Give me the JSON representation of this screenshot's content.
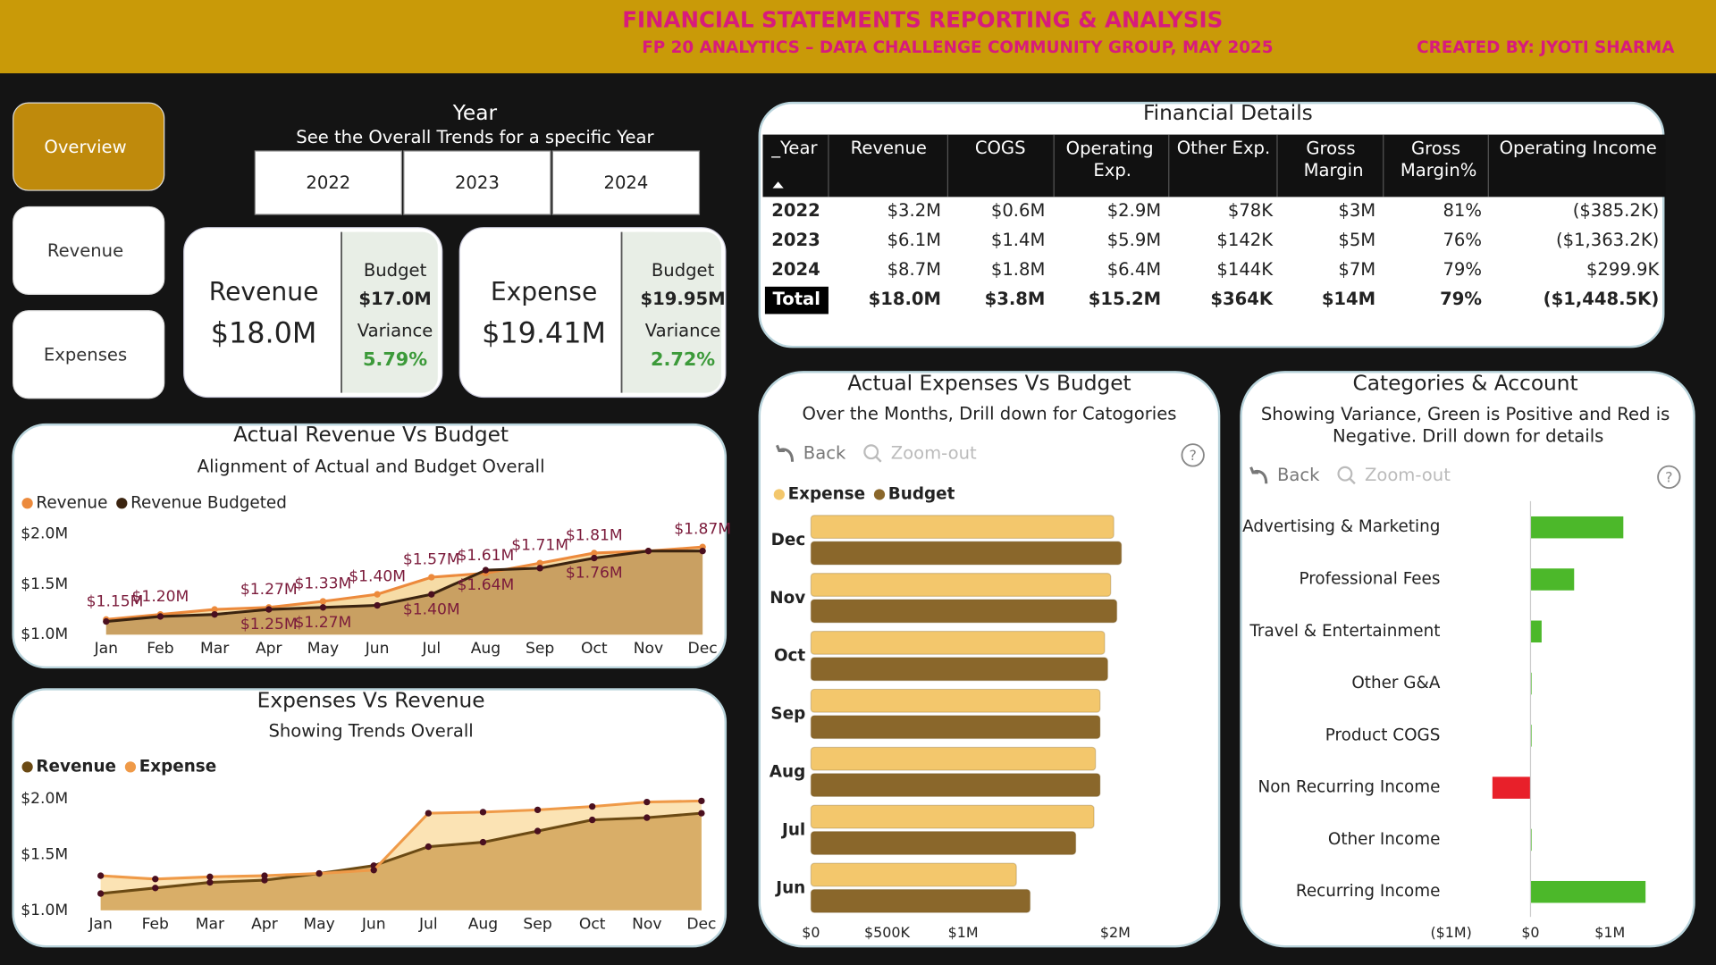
{
  "header": {
    "title": "FINANCIAL STATEMENTS REPORTING & ANALYSIS",
    "subtitle": "FP 20 ANALYTICS – DATA CHALLENGE COMMUNITY GROUP, MAY 2025",
    "credit": "CREATED BY: JYOTI SHARMA"
  },
  "nav": [
    "Overview",
    "Revenue",
    "Expenses"
  ],
  "year_filter": {
    "title": "Year",
    "subtitle": "See the Overall Trends for a specific Year",
    "options": [
      "2022",
      "2023",
      "2024"
    ]
  },
  "kpis": [
    {
      "label": "Revenue",
      "value": "$18.0M",
      "budget_label": "Budget",
      "budget": "$17.0M",
      "variance_label": "Variance",
      "variance": "5.79%"
    },
    {
      "label": "Expense",
      "value": "$19.41M",
      "budget_label": "Budget",
      "budget": "$19.95M",
      "variance_label": "Variance",
      "variance": "2.72%"
    }
  ],
  "table": {
    "title": "Financial Details",
    "columns": [
      "_Year",
      "Revenue",
      "COGS",
      "Operating Exp.",
      "Other Exp.",
      "Gross Margin",
      "Gross Margin%",
      "Operating Income"
    ],
    "rows": [
      [
        "2022",
        "$3.2M",
        "$0.6M",
        "$2.9M",
        "$78K",
        "$3M",
        "81%",
        "($385.2K)"
      ],
      [
        "2023",
        "$6.1M",
        "$1.4M",
        "$5.9M",
        "$142K",
        "$5M",
        "76%",
        "($1,363.2K)"
      ],
      [
        "2024",
        "$8.7M",
        "$1.8M",
        "$6.4M",
        "$144K",
        "$7M",
        "79%",
        "$299.9K"
      ]
    ],
    "total": [
      "Total",
      "$18.0M",
      "$3.8M",
      "$15.2M",
      "$364K",
      "$14M",
      "79%",
      "($1,448.5K)"
    ]
  },
  "chart_data": [
    {
      "type": "area",
      "title": "Actual Revenue Vs Budget",
      "subtitle": "Alignment of Actual and Budget Overall",
      "categories": [
        "Jan",
        "Feb",
        "Mar",
        "Apr",
        "May",
        "Jun",
        "Jul",
        "Aug",
        "Sep",
        "Oct",
        "Nov",
        "Dec"
      ],
      "series": [
        {
          "name": "Revenue",
          "color": "#ec8a3c",
          "fill": "#f6dca6",
          "values": [
            1.15,
            1.2,
            1.25,
            1.27,
            1.33,
            1.4,
            1.57,
            1.61,
            1.71,
            1.81,
            1.83,
            1.87
          ],
          "value_labels": [
            "$1.15M",
            "$1.20M",
            null,
            "$1.27M",
            "$1.33M",
            "$1.40M",
            "$1.57M",
            "$1.61M",
            "$1.71M",
            "$1.81M",
            null,
            "$1.87M"
          ]
        },
        {
          "name": "Revenue Budgeted",
          "color": "#3b2410",
          "fill": "#c9a062",
          "values": [
            1.13,
            1.18,
            1.2,
            1.25,
            1.27,
            1.29,
            1.4,
            1.64,
            1.66,
            1.76,
            1.83,
            1.83
          ],
          "value_labels": [
            null,
            null,
            null,
            "$1.25M",
            "$1.27M",
            null,
            "$1.40M",
            "$1.64M",
            null,
            "$1.76M",
            null,
            null
          ]
        }
      ],
      "ylim": [
        1.0,
        2.0
      ],
      "yticks": [
        {
          "value": 1.0,
          "label": "$1.0M"
        },
        {
          "value": 1.5,
          "label": "$1.5M"
        },
        {
          "value": 2.0,
          "label": "$2.0M"
        }
      ],
      "grid": false
    },
    {
      "type": "area",
      "title": "Expenses Vs Revenue",
      "subtitle": "Showing Trends Overall",
      "categories": [
        "Jan",
        "Feb",
        "Mar",
        "Apr",
        "May",
        "Jun",
        "Jul",
        "Aug",
        "Sep",
        "Oct",
        "Nov",
        "Dec"
      ],
      "series": [
        {
          "name": "Revenue",
          "color": "#6b4a14",
          "fill": "#d9ae68",
          "values": [
            1.15,
            1.2,
            1.25,
            1.27,
            1.33,
            1.4,
            1.57,
            1.61,
            1.71,
            1.81,
            1.83,
            1.87
          ]
        },
        {
          "name": "Expense",
          "color": "#ef9a48",
          "fill": "#fbe3b4",
          "values": [
            1.31,
            1.28,
            1.3,
            1.31,
            1.33,
            1.36,
            1.87,
            1.88,
            1.9,
            1.93,
            1.97,
            1.98
          ]
        }
      ],
      "ylim": [
        1.0,
        2.0
      ],
      "yticks": [
        {
          "value": 1.0,
          "label": "$1.0M"
        },
        {
          "value": 1.5,
          "label": "$1.5M"
        },
        {
          "value": 2.0,
          "label": "$2.0M"
        }
      ],
      "grid": false
    },
    {
      "type": "barh",
      "title": "Actual Expenses Vs Budget",
      "subtitle": "Over the Months, Drill down for Catogories",
      "buttons": [
        "Back",
        "Zoom-out"
      ],
      "help_icon": "?",
      "categories": [
        "Dec",
        "Nov",
        "Oct",
        "Sep",
        "Aug",
        "Jul",
        "Jun"
      ],
      "series": [
        {
          "name": "Expense",
          "color": "#f3c76c",
          "values": [
            1.99,
            1.97,
            1.93,
            1.9,
            1.87,
            1.86,
            1.35
          ]
        },
        {
          "name": "Budget",
          "color": "#8a672b",
          "values": [
            2.04,
            2.01,
            1.95,
            1.9,
            1.9,
            1.74,
            1.44
          ]
        }
      ],
      "xlim": [
        0,
        2.1
      ],
      "xticks": [
        {
          "value": 0,
          "label": "$0"
        },
        {
          "value": 0.5,
          "label": "$500K"
        },
        {
          "value": 1,
          "label": "$1M"
        },
        {
          "value": 2,
          "label": "$2M"
        }
      ],
      "grid": false
    },
    {
      "type": "barh",
      "title": "Categories & Account",
      "subtitle": "Showing Variance, Green is Positive and Red is Negative. Drill down for details",
      "buttons": [
        "Back",
        "Zoom-out"
      ],
      "help_icon": "?",
      "categories": [
        "Advertising & Marketing",
        "Professional Fees",
        "Travel & Entertainment",
        "Other G&A",
        "Product COGS",
        "Non Recurring Income",
        "Other Income",
        "Recurring Income"
      ],
      "values": [
        1.17,
        0.55,
        0.14,
        0.01,
        0.005,
        -0.48,
        0.01,
        1.45
      ],
      "positive_color": "#4cb82a",
      "negative_color": "#e8202a",
      "xlim": [
        -1,
        1.8
      ],
      "xticks": [
        {
          "value": -1,
          "label": "($1M)"
        },
        {
          "value": 0,
          "label": "$0"
        },
        {
          "value": 1,
          "label": "$1M"
        }
      ],
      "grid": false
    }
  ]
}
